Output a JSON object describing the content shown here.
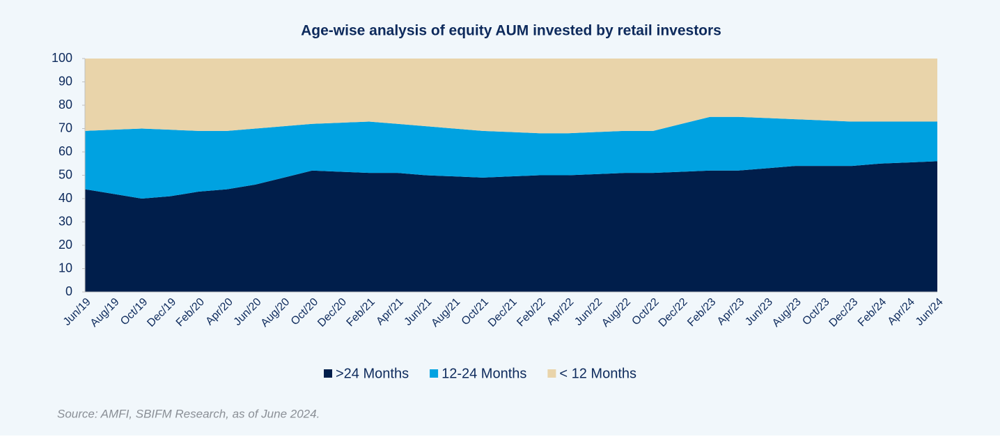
{
  "chart_data": {
    "type": "stacked_area",
    "title": "Age-wise analysis of equity AUM invested by retail investors",
    "categories": [
      "Jun/19",
      "Aug/19",
      "Oct/19",
      "Dec/19",
      "Feb/20",
      "Apr/20",
      "Jun/20",
      "Aug/20",
      "Oct/20",
      "Dec/20",
      "Feb/21",
      "Apr/21",
      "Jun/21",
      "Aug/21",
      "Oct/21",
      "Dec/21",
      "Feb/22",
      "Apr/22",
      "Jun/22",
      "Aug/22",
      "Oct/22",
      "Dec/22",
      "Feb/23",
      "Apr/23",
      "Jun/23",
      "Aug/23",
      "Oct/23",
      "Dec/23",
      "Feb/24",
      "Apr/24",
      "Jun/24"
    ],
    "series": [
      {
        "name": ">24 Months",
        "color": "#001e4b",
        "values": [
          44,
          42,
          40,
          41,
          43,
          44,
          46,
          49,
          52,
          51.5,
          51,
          51,
          50,
          49.5,
          49,
          49.5,
          50,
          50,
          50.5,
          51,
          51,
          51.5,
          52,
          52,
          53,
          54,
          54,
          54,
          55,
          55.5,
          56
        ]
      },
      {
        "name": "12-24 Months",
        "color": "#00a2e1",
        "values": [
          25,
          27.5,
          30,
          28.5,
          26,
          25,
          24,
          22,
          20,
          21,
          22,
          21,
          21,
          20.5,
          20,
          19,
          18,
          18,
          18,
          18,
          18,
          20.5,
          23,
          23,
          21.5,
          20,
          19.5,
          19,
          18,
          17.5,
          17
        ]
      },
      {
        "name": "< 12 Months",
        "color": "#e9d4aa",
        "values": [
          31,
          30.5,
          30,
          30.5,
          31,
          31,
          30,
          29,
          28,
          27.5,
          27,
          28,
          29,
          30,
          31,
          31.5,
          32,
          32,
          31.5,
          31,
          31,
          28,
          25,
          25,
          25.5,
          26,
          26.5,
          27,
          27,
          27,
          27
        ]
      }
    ],
    "ylim": [
      0,
      100
    ],
    "yticks": [
      0,
      10,
      20,
      30,
      40,
      50,
      60,
      70,
      80,
      90,
      100
    ],
    "grid": false,
    "legend": "bottom",
    "source": "Source: AMFI, SBIFM Research, as of June 2024."
  }
}
